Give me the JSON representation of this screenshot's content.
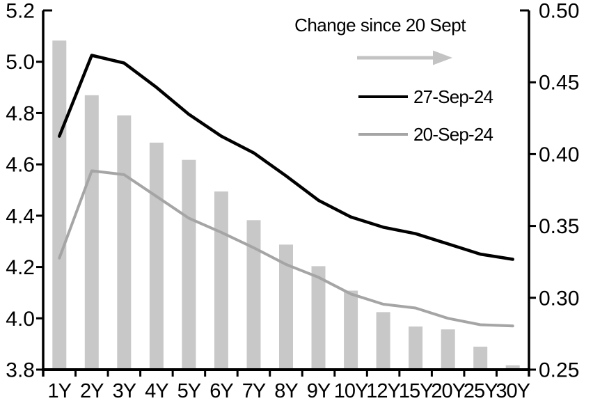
{
  "chart_data": {
    "type": "combo-bar-line",
    "categories": [
      "1Y",
      "2Y",
      "3Y",
      "4Y",
      "5Y",
      "6Y",
      "7Y",
      "8Y",
      "9Y",
      "10Y",
      "12Y",
      "15Y",
      "20Y",
      "25Y",
      "30Y"
    ],
    "series": [
      {
        "name": "Change since 20 Sept",
        "type": "bar",
        "axis": "right",
        "color": "#C8C8C8",
        "values": [
          0.479,
          0.441,
          0.427,
          0.408,
          0.396,
          0.374,
          0.354,
          0.337,
          0.322,
          0.305,
          0.29,
          0.28,
          0.278,
          0.266,
          0.253
        ]
      },
      {
        "name": "27-Sep-24",
        "type": "line",
        "axis": "left",
        "color": "#000000",
        "values": [
          4.71,
          5.025,
          4.995,
          4.9,
          4.795,
          4.71,
          4.645,
          4.555,
          4.46,
          4.395,
          4.355,
          4.33,
          4.29,
          4.25,
          4.23
        ]
      },
      {
        "name": "20-Sep-24",
        "type": "line",
        "axis": "left",
        "color": "#A5A5A5",
        "values": [
          4.235,
          4.575,
          4.56,
          4.475,
          4.39,
          4.335,
          4.275,
          4.21,
          4.16,
          4.095,
          4.055,
          4.04,
          4.0,
          3.975,
          3.97
        ]
      }
    ],
    "left_axis": {
      "min": 3.8,
      "max": 5.2,
      "tick_labels": [
        "5.2",
        "5.0",
        "4.8",
        "4.6",
        "4.4",
        "4.2",
        "4.0",
        "3.8"
      ]
    },
    "right_axis": {
      "min": 0.25,
      "max": 0.5,
      "tick_labels": [
        "0.50",
        "0.45",
        "0.40",
        "0.35",
        "0.30",
        "0.25"
      ]
    },
    "legend": {
      "title": "Change since 20 Sept",
      "arrow_color": "#C3C3C3",
      "entries": [
        {
          "label": "27-Sep-24",
          "color": "#000000"
        },
        {
          "label": "20-Sep-24",
          "color": "#A5A5A5"
        }
      ],
      "position": "inside-top-right"
    },
    "grid": false
  }
}
